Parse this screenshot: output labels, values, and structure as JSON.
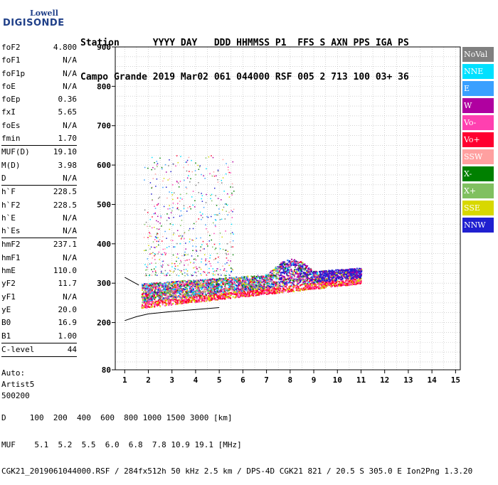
{
  "logo": {
    "line1": "Lowell",
    "line2": "DIGISONDE",
    "color": "#1f3f88"
  },
  "header": {
    "line1": "Station      YYYY DAY   DDD HHMMSS P1  FFS S AXN PPS IGA PS",
    "line2": "Campo Grande 2019 Mar02 061 044000 RSF 005 2 713 100 03+ 36"
  },
  "params": [
    {
      "name": "foF2",
      "value": "4.800",
      "sep": false
    },
    {
      "name": "foF1",
      "value": "N/A",
      "sep": false
    },
    {
      "name": "foF1p",
      "value": "N/A",
      "sep": false
    },
    {
      "name": "foE",
      "value": "N/A",
      "sep": false
    },
    {
      "name": "foEp",
      "value": "0.36",
      "sep": false
    },
    {
      "name": "fxI",
      "value": "5.65",
      "sep": false
    },
    {
      "name": "foEs",
      "value": "N/A",
      "sep": false
    },
    {
      "name": "fmin",
      "value": "1.70",
      "sep": false
    },
    {
      "name": "MUF(D)",
      "value": "19.10",
      "sep": true
    },
    {
      "name": "M(D)",
      "value": "3.98",
      "sep": false
    },
    {
      "name": "D",
      "value": "N/A",
      "sep": false
    },
    {
      "name": "h`F",
      "value": "228.5",
      "sep": true
    },
    {
      "name": "h`F2",
      "value": "228.5",
      "sep": false
    },
    {
      "name": "h`E",
      "value": "N/A",
      "sep": false
    },
    {
      "name": "h`Es",
      "value": "N/A",
      "sep": false
    },
    {
      "name": "hmF2",
      "value": "237.1",
      "sep": true
    },
    {
      "name": "hmF1",
      "value": "N/A",
      "sep": false
    },
    {
      "name": "hmE",
      "value": "110.0",
      "sep": false
    },
    {
      "name": "yF2",
      "value": "11.7",
      "sep": false
    },
    {
      "name": "yF1",
      "value": "N/A",
      "sep": false
    },
    {
      "name": "yE",
      "value": "20.0",
      "sep": false
    },
    {
      "name": "B0",
      "value": "16.9",
      "sep": false
    },
    {
      "name": "B1",
      "value": "1.00",
      "sep": false
    },
    {
      "name": "C-level",
      "value": "44",
      "sep": true
    }
  ],
  "footer_params": {
    "auto_label": "Auto:",
    "artist": "Artist5",
    "version": "500200"
  },
  "bottom": {
    "d_line": "D     100  200  400  600  800 1000 1500 3000 [km]",
    "muf_line": "MUF    5.1  5.2  5.5  6.0  6.8  7.8 10.9 19.1 [MHz]",
    "file_line": "CGK21_2019061044000.RSF / 284fx512h 50 kHz 2.5 km / DPS-4D CGK21 821 / 20.5 S 305.0 E Ion2Png 1.3.20"
  },
  "legend": [
    {
      "label": "NoVal",
      "color": "#808080"
    },
    {
      "label": "NNE",
      "color": "#00e0ff"
    },
    {
      "label": "E",
      "color": "#3aa0ff"
    },
    {
      "label": "W",
      "color": "#b000a0"
    },
    {
      "label": "Vo-",
      "color": "#ff40b0"
    },
    {
      "label": "Vo+",
      "color": "#ff0030"
    },
    {
      "label": "SSW",
      "color": "#ffa0a0"
    },
    {
      "label": "X-",
      "color": "#008000"
    },
    {
      "label": "X+",
      "color": "#80c060"
    },
    {
      "label": "SSE",
      "color": "#d8d800"
    },
    {
      "label": "NNW",
      "color": "#2020d0"
    }
  ],
  "chart_data": {
    "type": "scatter",
    "title": "",
    "xlabel": "",
    "ylabel": "",
    "xlim": [
      0.6,
      15.2
    ],
    "ylim": [
      80,
      900
    ],
    "x_ticks": [
      1,
      2,
      3,
      4,
      5,
      6,
      7,
      8,
      9,
      10,
      11,
      12,
      13,
      14,
      15
    ],
    "y_ticks": [
      80,
      200,
      300,
      400,
      500,
      600,
      700,
      800,
      900
    ],
    "grid": true,
    "legend_position": "right",
    "echo_band": {
      "description_x_range_mhz": [
        1.7,
        11.0
      ],
      "lower_height_km": [
        235,
        305
      ],
      "upper_height_km": [
        300,
        345
      ],
      "scatter_max_height_km": 625
    },
    "trace_curves": [
      {
        "name": "trace-lower",
        "x": [
          1.0,
          1.5,
          2.0,
          3.0,
          4.0,
          5.0
        ],
        "y": [
          205,
          215,
          222,
          228,
          233,
          238
        ]
      },
      {
        "name": "trace-upper",
        "x": [
          1.0,
          1.3,
          1.6
        ],
        "y": [
          315,
          305,
          295
        ]
      }
    ]
  }
}
